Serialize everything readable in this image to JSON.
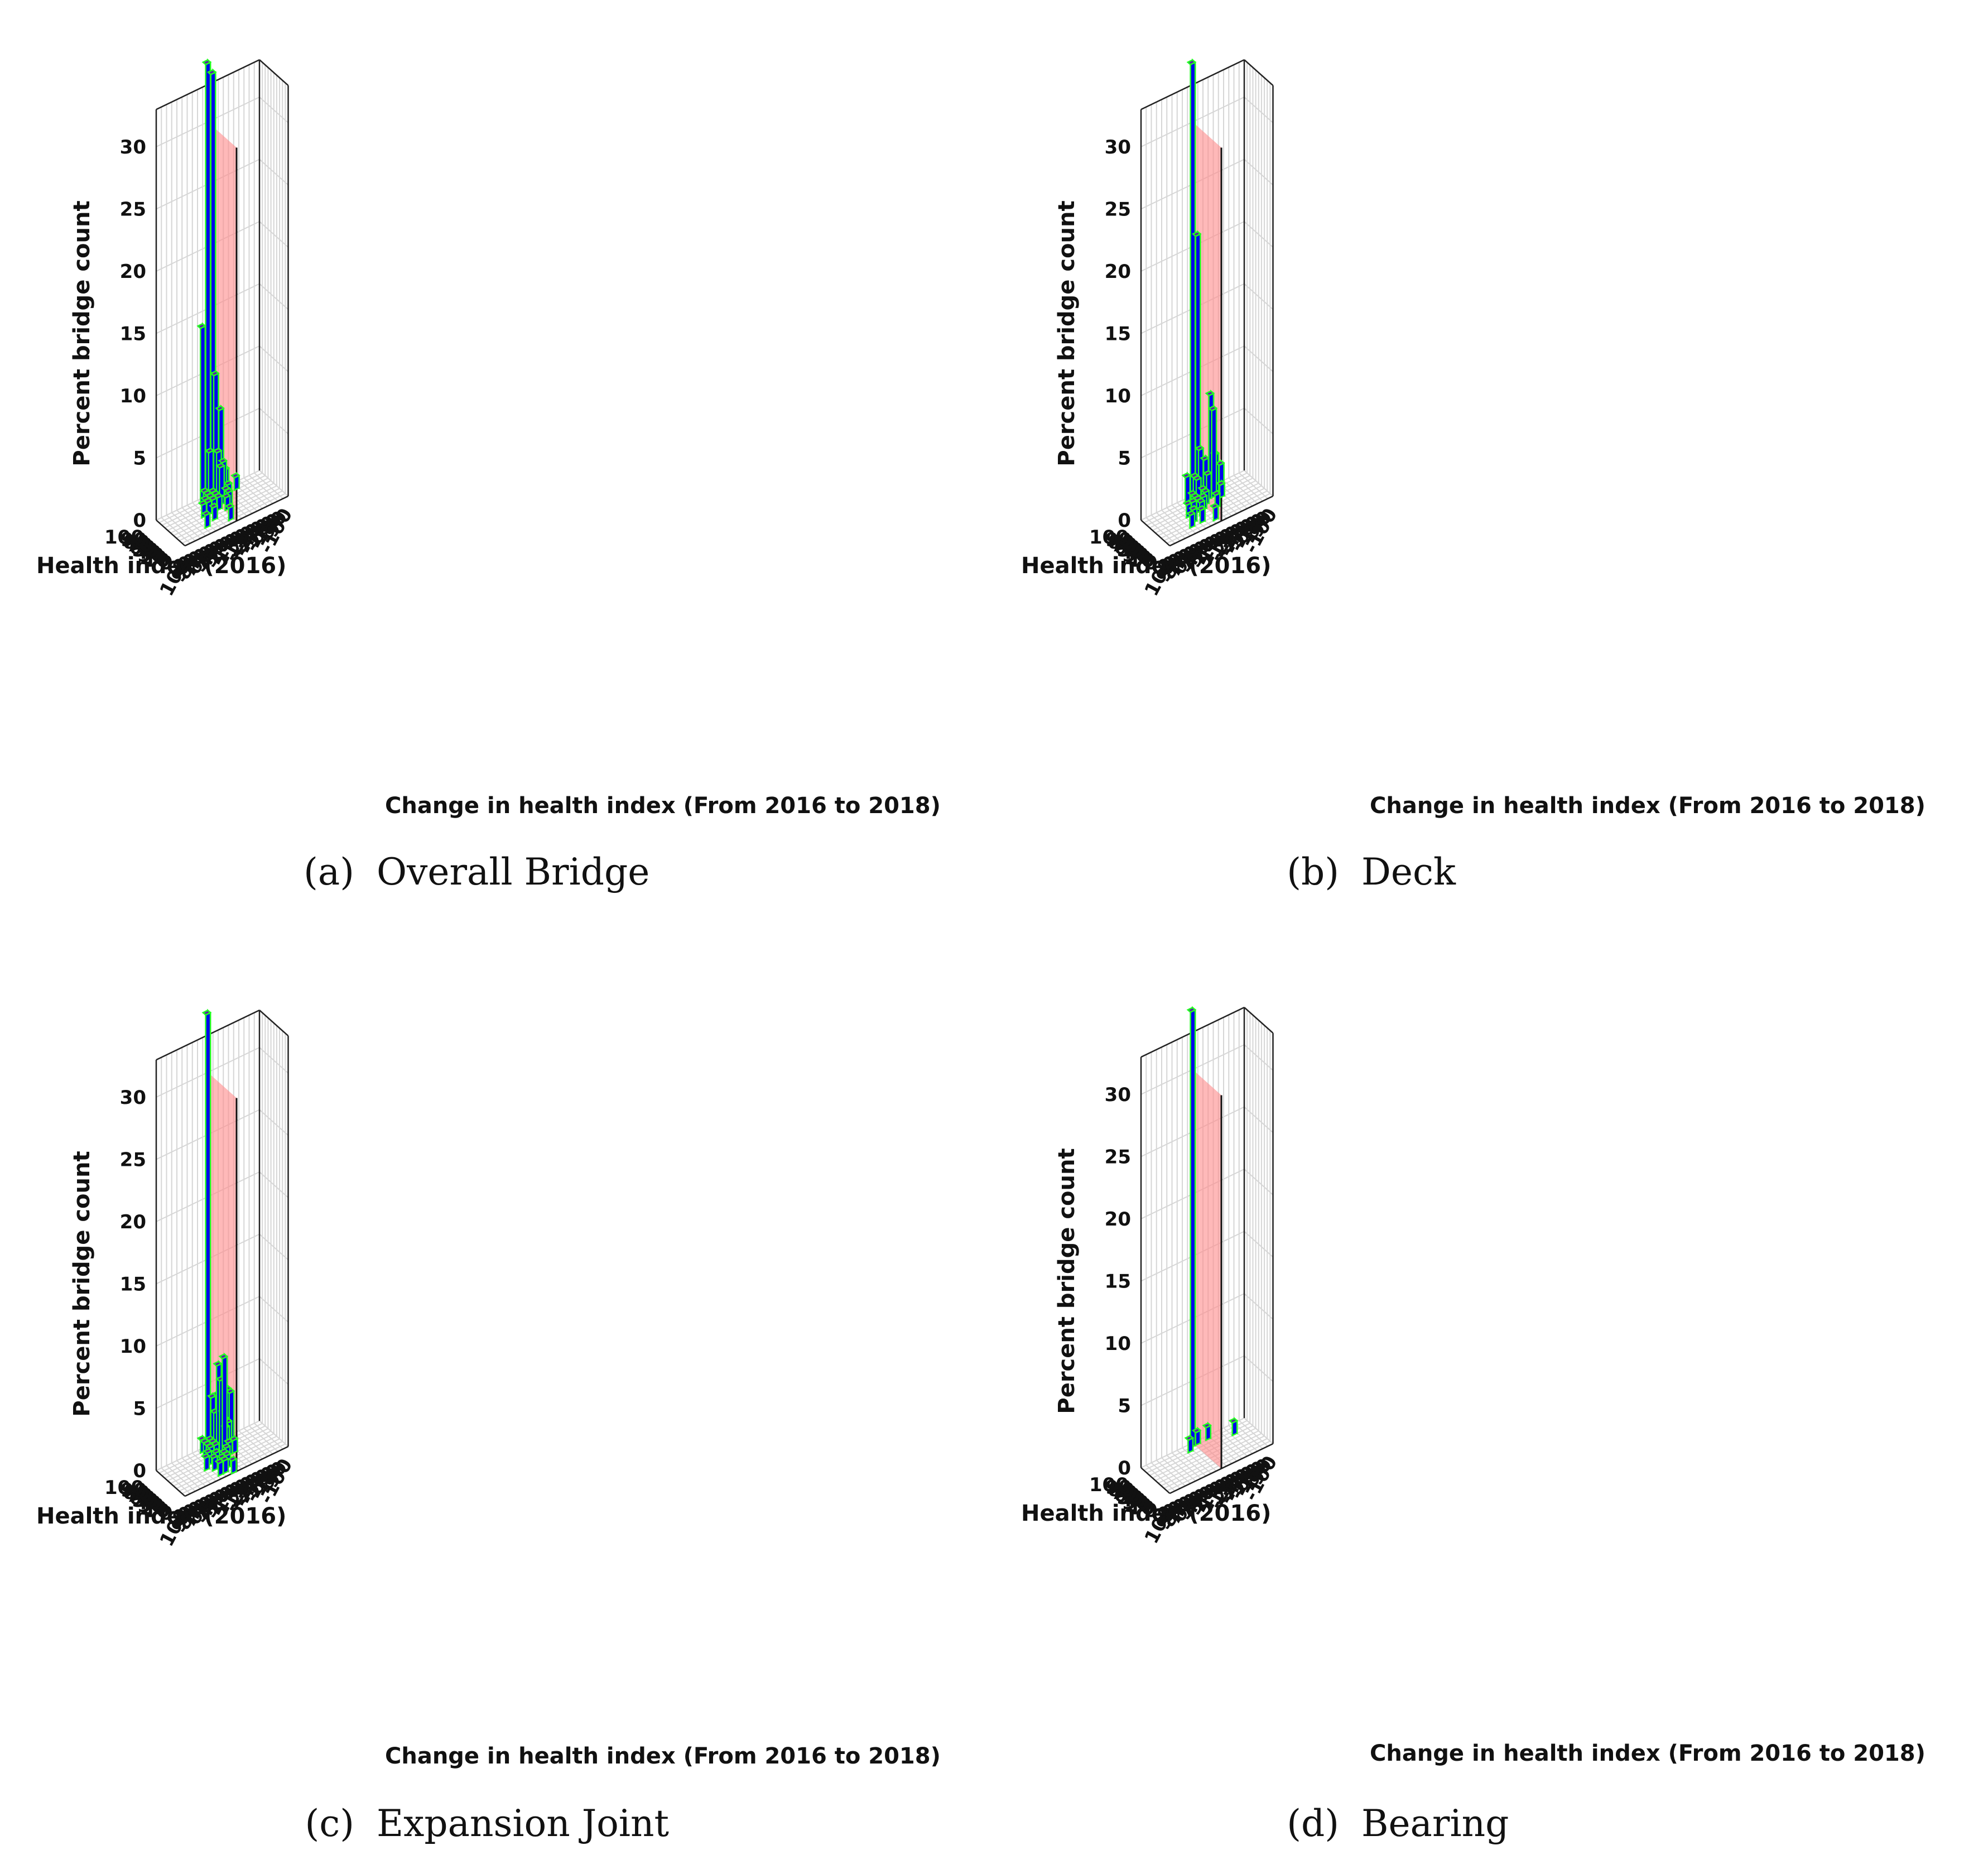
{
  "figure": {
    "colors": {
      "bar_front": "#0000ee",
      "bar_top": "#5a1fa8",
      "bar_side": "#3a0a9a",
      "bar_edge": "#22ff22",
      "plane": "#ff8a8a",
      "grid": "#d6d6d6",
      "axis": "#222222"
    }
  },
  "chart_data": [
    {
      "type": "bar3d",
      "caption_letter": "(a)",
      "caption_title": "Overall Bridge",
      "xlabel": "Health index (2016)",
      "ylabel": "Change in health index (From 2016 to 2018)",
      "zlabel": "Percent bridge count",
      "x_ticks": [
        "0",
        "10",
        "20",
        "30",
        "40",
        "50",
        "60",
        "70",
        "80",
        "90",
        "100"
      ],
      "y_ticks": [
        "100",
        "90",
        "80",
        "70",
        "60",
        "50",
        "40",
        "30",
        "20",
        "10",
        "0",
        "-10",
        "-20",
        "-30",
        "-40",
        "-50",
        "-60",
        "-70",
        "-80",
        "-90",
        "-100"
      ],
      "z_ticks": [
        "0",
        "5",
        "10",
        "15",
        "20",
        "25",
        "30"
      ],
      "xlim": [
        0,
        100
      ],
      "ylim": [
        100,
        -100
      ],
      "zlim": [
        0,
        30
      ],
      "reference_plane": "change = 0",
      "bars": [
        {
          "x": 95,
          "y": 5,
          "z": 35
        },
        {
          "x": 95,
          "y": -5,
          "z": 34
        },
        {
          "x": 95,
          "y": 15,
          "z": 14
        },
        {
          "x": 85,
          "y": -5,
          "z": 10
        },
        {
          "x": 85,
          "y": -15,
          "z": 7
        },
        {
          "x": 85,
          "y": -25,
          "z": 2
        },
        {
          "x": 85,
          "y": 5,
          "z": 4
        },
        {
          "x": 85,
          "y": 15,
          "z": 1
        },
        {
          "x": 85,
          "y": -45,
          "z": 1
        },
        {
          "x": 75,
          "y": -5,
          "z": 4
        },
        {
          "x": 75,
          "y": -15,
          "z": 3
        },
        {
          "x": 75,
          "y": -25,
          "z": 1
        },
        {
          "x": 75,
          "y": 5,
          "z": 1
        },
        {
          "x": 75,
          "y": 15,
          "z": 1
        },
        {
          "x": 65,
          "y": -5,
          "z": 3
        },
        {
          "x": 65,
          "y": -15,
          "z": 1
        },
        {
          "x": 65,
          "y": 5,
          "z": 1
        },
        {
          "x": 65,
          "y": 15,
          "z": 1
        },
        {
          "x": 65,
          "y": 25,
          "z": 1
        },
        {
          "x": 55,
          "y": 5,
          "z": 1
        },
        {
          "x": 55,
          "y": 15,
          "z": 1
        },
        {
          "x": 55,
          "y": 25,
          "z": 1
        },
        {
          "x": 55,
          "y": 35,
          "z": 1
        },
        {
          "x": 55,
          "y": -15,
          "z": 1
        },
        {
          "x": 45,
          "y": -5,
          "z": 1
        },
        {
          "x": 35,
          "y": 25,
          "z": 1
        },
        {
          "x": 25,
          "y": 45,
          "z": 1
        },
        {
          "x": 15,
          "y": 5,
          "z": 1
        }
      ]
    },
    {
      "type": "bar3d",
      "caption_letter": "(b)",
      "caption_title": "Deck",
      "xlabel": "Health index (2016)",
      "ylabel": "Change in health index (From 2016 to 2018)",
      "zlabel": "Percent bridge count",
      "x_ticks": [
        "0",
        "10",
        "20",
        "30",
        "40",
        "50",
        "60",
        "70",
        "80",
        "90",
        "100"
      ],
      "y_ticks": [
        "100",
        "90",
        "80",
        "70",
        "60",
        "50",
        "40",
        "30",
        "20",
        "10",
        "0",
        "-10",
        "-20",
        "-30",
        "-40",
        "-50",
        "-60",
        "-70",
        "-80",
        "-90",
        "-100"
      ],
      "z_ticks": [
        "0",
        "5",
        "10",
        "15",
        "20",
        "25",
        "30"
      ],
      "xlim": [
        0,
        100
      ],
      "ylim": [
        100,
        -100
      ],
      "zlim": [
        0,
        30
      ],
      "reference_plane": "change = 0",
      "bars": [
        {
          "x": 95,
          "y": 5,
          "z": 35
        },
        {
          "x": 95,
          "y": -5,
          "z": 21
        },
        {
          "x": 95,
          "y": 15,
          "z": 2
        },
        {
          "x": 85,
          "y": 5,
          "z": 2
        },
        {
          "x": 85,
          "y": -5,
          "z": 4
        },
        {
          "x": 85,
          "y": -15,
          "z": 3
        },
        {
          "x": 85,
          "y": -25,
          "z": 8
        },
        {
          "x": 85,
          "y": -35,
          "z": 3
        },
        {
          "x": 85,
          "y": -45,
          "z": 2
        },
        {
          "x": 75,
          "y": -5,
          "z": 1
        },
        {
          "x": 75,
          "y": -15,
          "z": 2
        },
        {
          "x": 75,
          "y": -25,
          "z": 7
        },
        {
          "x": 75,
          "y": 5,
          "z": 2
        },
        {
          "x": 75,
          "y": 15,
          "z": 1
        },
        {
          "x": 65,
          "y": -5,
          "z": 1
        },
        {
          "x": 65,
          "y": 15,
          "z": 1
        },
        {
          "x": 65,
          "y": -35,
          "z": 1
        },
        {
          "x": 55,
          "y": 5,
          "z": 1
        },
        {
          "x": 55,
          "y": 15,
          "z": 1
        },
        {
          "x": 55,
          "y": 25,
          "z": 1
        },
        {
          "x": 55,
          "y": 35,
          "z": 1
        },
        {
          "x": 45,
          "y": -15,
          "z": 1
        },
        {
          "x": 45,
          "y": 15,
          "z": 1
        },
        {
          "x": 35,
          "y": 35,
          "z": 1
        },
        {
          "x": 25,
          "y": 25,
          "z": 1
        },
        {
          "x": 25,
          "y": 45,
          "z": 1
        },
        {
          "x": 15,
          "y": 5,
          "z": 1
        }
      ]
    },
    {
      "type": "bar3d",
      "caption_letter": "(c)",
      "caption_title": "Expansion Joint",
      "xlabel": "Health index (2016)",
      "ylabel": "Change in health index (From 2016 to 2018)",
      "zlabel": "Percent bridge count",
      "x_ticks": [
        "0",
        "10",
        "20",
        "30",
        "40",
        "50",
        "60",
        "70",
        "80",
        "90",
        "100"
      ],
      "y_ticks": [
        "100",
        "90",
        "80",
        "70",
        "60",
        "50",
        "40",
        "30",
        "20",
        "10",
        "0",
        "-10",
        "-20",
        "-30",
        "-40",
        "-50",
        "-60",
        "-70",
        "-80",
        "-90",
        "-100"
      ],
      "z_ticks": [
        "0",
        "5",
        "10",
        "15",
        "20",
        "25",
        "30"
      ],
      "xlim": [
        0,
        100
      ],
      "ylim": [
        100,
        -100
      ],
      "zlim": [
        0,
        30
      ],
      "reference_plane": "change = 0",
      "bars": [
        {
          "x": 95,
          "y": 5,
          "z": 35
        },
        {
          "x": 95,
          "y": -5,
          "z": 4
        },
        {
          "x": 95,
          "y": -15,
          "z": 4
        },
        {
          "x": 95,
          "y": -25,
          "z": 5
        },
        {
          "x": 95,
          "y": -35,
          "z": 4
        },
        {
          "x": 95,
          "y": 15,
          "z": 1
        },
        {
          "x": 85,
          "y": -5,
          "z": 3
        },
        {
          "x": 85,
          "y": -15,
          "z": 3
        },
        {
          "x": 85,
          "y": -25,
          "z": 2
        },
        {
          "x": 85,
          "y": -35,
          "z": 4
        },
        {
          "x": 85,
          "y": 5,
          "z": 1
        },
        {
          "x": 85,
          "y": 15,
          "z": 1
        },
        {
          "x": 75,
          "y": -5,
          "z": 7
        },
        {
          "x": 75,
          "y": -15,
          "z": 3
        },
        {
          "x": 75,
          "y": -25,
          "z": 2
        },
        {
          "x": 75,
          "y": 5,
          "z": 1
        },
        {
          "x": 75,
          "y": 15,
          "z": 1
        },
        {
          "x": 65,
          "y": -5,
          "z": 6
        },
        {
          "x": 65,
          "y": -15,
          "z": 2
        },
        {
          "x": 65,
          "y": 5,
          "z": 1
        },
        {
          "x": 65,
          "y": 15,
          "z": 1
        },
        {
          "x": 55,
          "y": -5,
          "z": 8
        },
        {
          "x": 55,
          "y": -15,
          "z": 1
        },
        {
          "x": 55,
          "y": -25,
          "z": 1
        },
        {
          "x": 55,
          "y": 25,
          "z": 1
        },
        {
          "x": 45,
          "y": -5,
          "z": 1
        },
        {
          "x": 45,
          "y": 15,
          "z": 1
        },
        {
          "x": 45,
          "y": 35,
          "z": 1
        },
        {
          "x": 35,
          "y": 5,
          "z": 1
        },
        {
          "x": 35,
          "y": 25,
          "z": 1
        },
        {
          "x": 25,
          "y": 5,
          "z": 1
        },
        {
          "x": 25,
          "y": 15,
          "z": 1
        },
        {
          "x": 15,
          "y": 15,
          "z": 1
        },
        {
          "x": 15,
          "y": 25,
          "z": 1
        },
        {
          "x": 5,
          "y": 5,
          "z": 1
        }
      ]
    },
    {
      "type": "bar3d",
      "caption_letter": "(d)",
      "caption_title": "Bearing",
      "xlabel": "Health index (2016)",
      "ylabel": "Change in health index (From 2016 to 2018)",
      "zlabel": "Percent bridge count",
      "x_ticks": [
        "0",
        "10",
        "20",
        "30",
        "40",
        "50",
        "60",
        "70",
        "80",
        "90",
        "100"
      ],
      "y_ticks": [
        "100",
        "90",
        "80",
        "70",
        "60",
        "50",
        "40",
        "30",
        "20",
        "10",
        "0",
        "-10",
        "-20",
        "-30",
        "-40",
        "-50",
        "-60",
        "-70",
        "-80",
        "-90",
        "-100"
      ],
      "z_ticks": [
        "0",
        "5",
        "10",
        "15",
        "20",
        "25",
        "30"
      ],
      "xlim": [
        0,
        100
      ],
      "ylim": [
        100,
        -100
      ],
      "zlim": [
        0,
        30
      ],
      "reference_plane": "change = 0",
      "bars": [
        {
          "x": 95,
          "y": 5,
          "z": 35
        },
        {
          "x": 95,
          "y": -5,
          "z": 1
        },
        {
          "x": 95,
          "y": -25,
          "z": 1
        },
        {
          "x": 75,
          "y": -65,
          "z": 1
        },
        {
          "x": 85,
          "y": 15,
          "z": 1
        }
      ]
    }
  ]
}
